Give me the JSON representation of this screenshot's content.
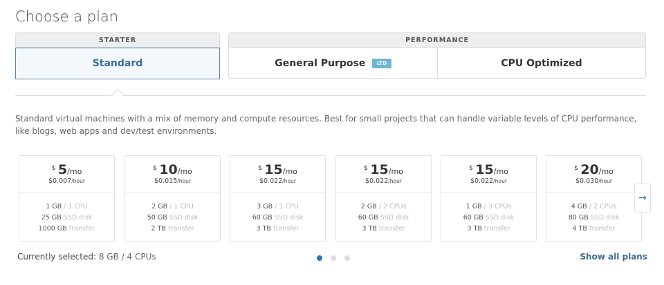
{
  "title": "Choose a plan",
  "groups": {
    "starter": {
      "label": "STARTER",
      "options": [
        "Standard"
      ]
    },
    "performance": {
      "label": "PERFORMANCE",
      "options": [
        "General Purpose",
        "CPU Optimized"
      ],
      "badge": "LTD"
    }
  },
  "description": "Standard virtual machines with a mix of memory and compute resources. Best for small projects that can handle variable levels of CPU performance, like blogs, web apps and dev/test environments.",
  "plans": [
    {
      "price": "5",
      "hourly": "$0.007",
      "mem": "1 GB",
      "cpu": "1 CPU",
      "disk": "25 GB",
      "transfer": "1000 GB"
    },
    {
      "price": "10",
      "hourly": "$0.015",
      "mem": "2 GB",
      "cpu": "1 CPU",
      "disk": "50 GB",
      "transfer": "2 TB"
    },
    {
      "price": "15",
      "hourly": "$0.022",
      "mem": "3 GB",
      "cpu": "1 CPU",
      "disk": "60 GB",
      "transfer": "3 TB"
    },
    {
      "price": "15",
      "hourly": "$0.022",
      "mem": "2 GB",
      "cpu": "2 CPUs",
      "disk": "60 GB",
      "transfer": "3 TB"
    },
    {
      "price": "15",
      "hourly": "$0.022",
      "mem": "1 GB",
      "cpu": "3 CPUs",
      "disk": "60 GB",
      "transfer": "3 TB"
    },
    {
      "price": "20",
      "hourly": "$0.030",
      "mem": "4 GB",
      "cpu": "2 CPUs",
      "disk": "80 GB",
      "transfer": "4 TB"
    }
  ],
  "units": {
    "currency": "$",
    "per_month": "/mo",
    "per_hour": "/hour",
    "disk": "SSD disk",
    "transfer": "transfer",
    "sep": "/"
  },
  "current": {
    "label": "Currently selected:",
    "value": "8 GB / 4 CPUs"
  },
  "pagination": {
    "pages": 3,
    "active": 1
  },
  "show_all": "Show all plans",
  "next_icon": "→"
}
